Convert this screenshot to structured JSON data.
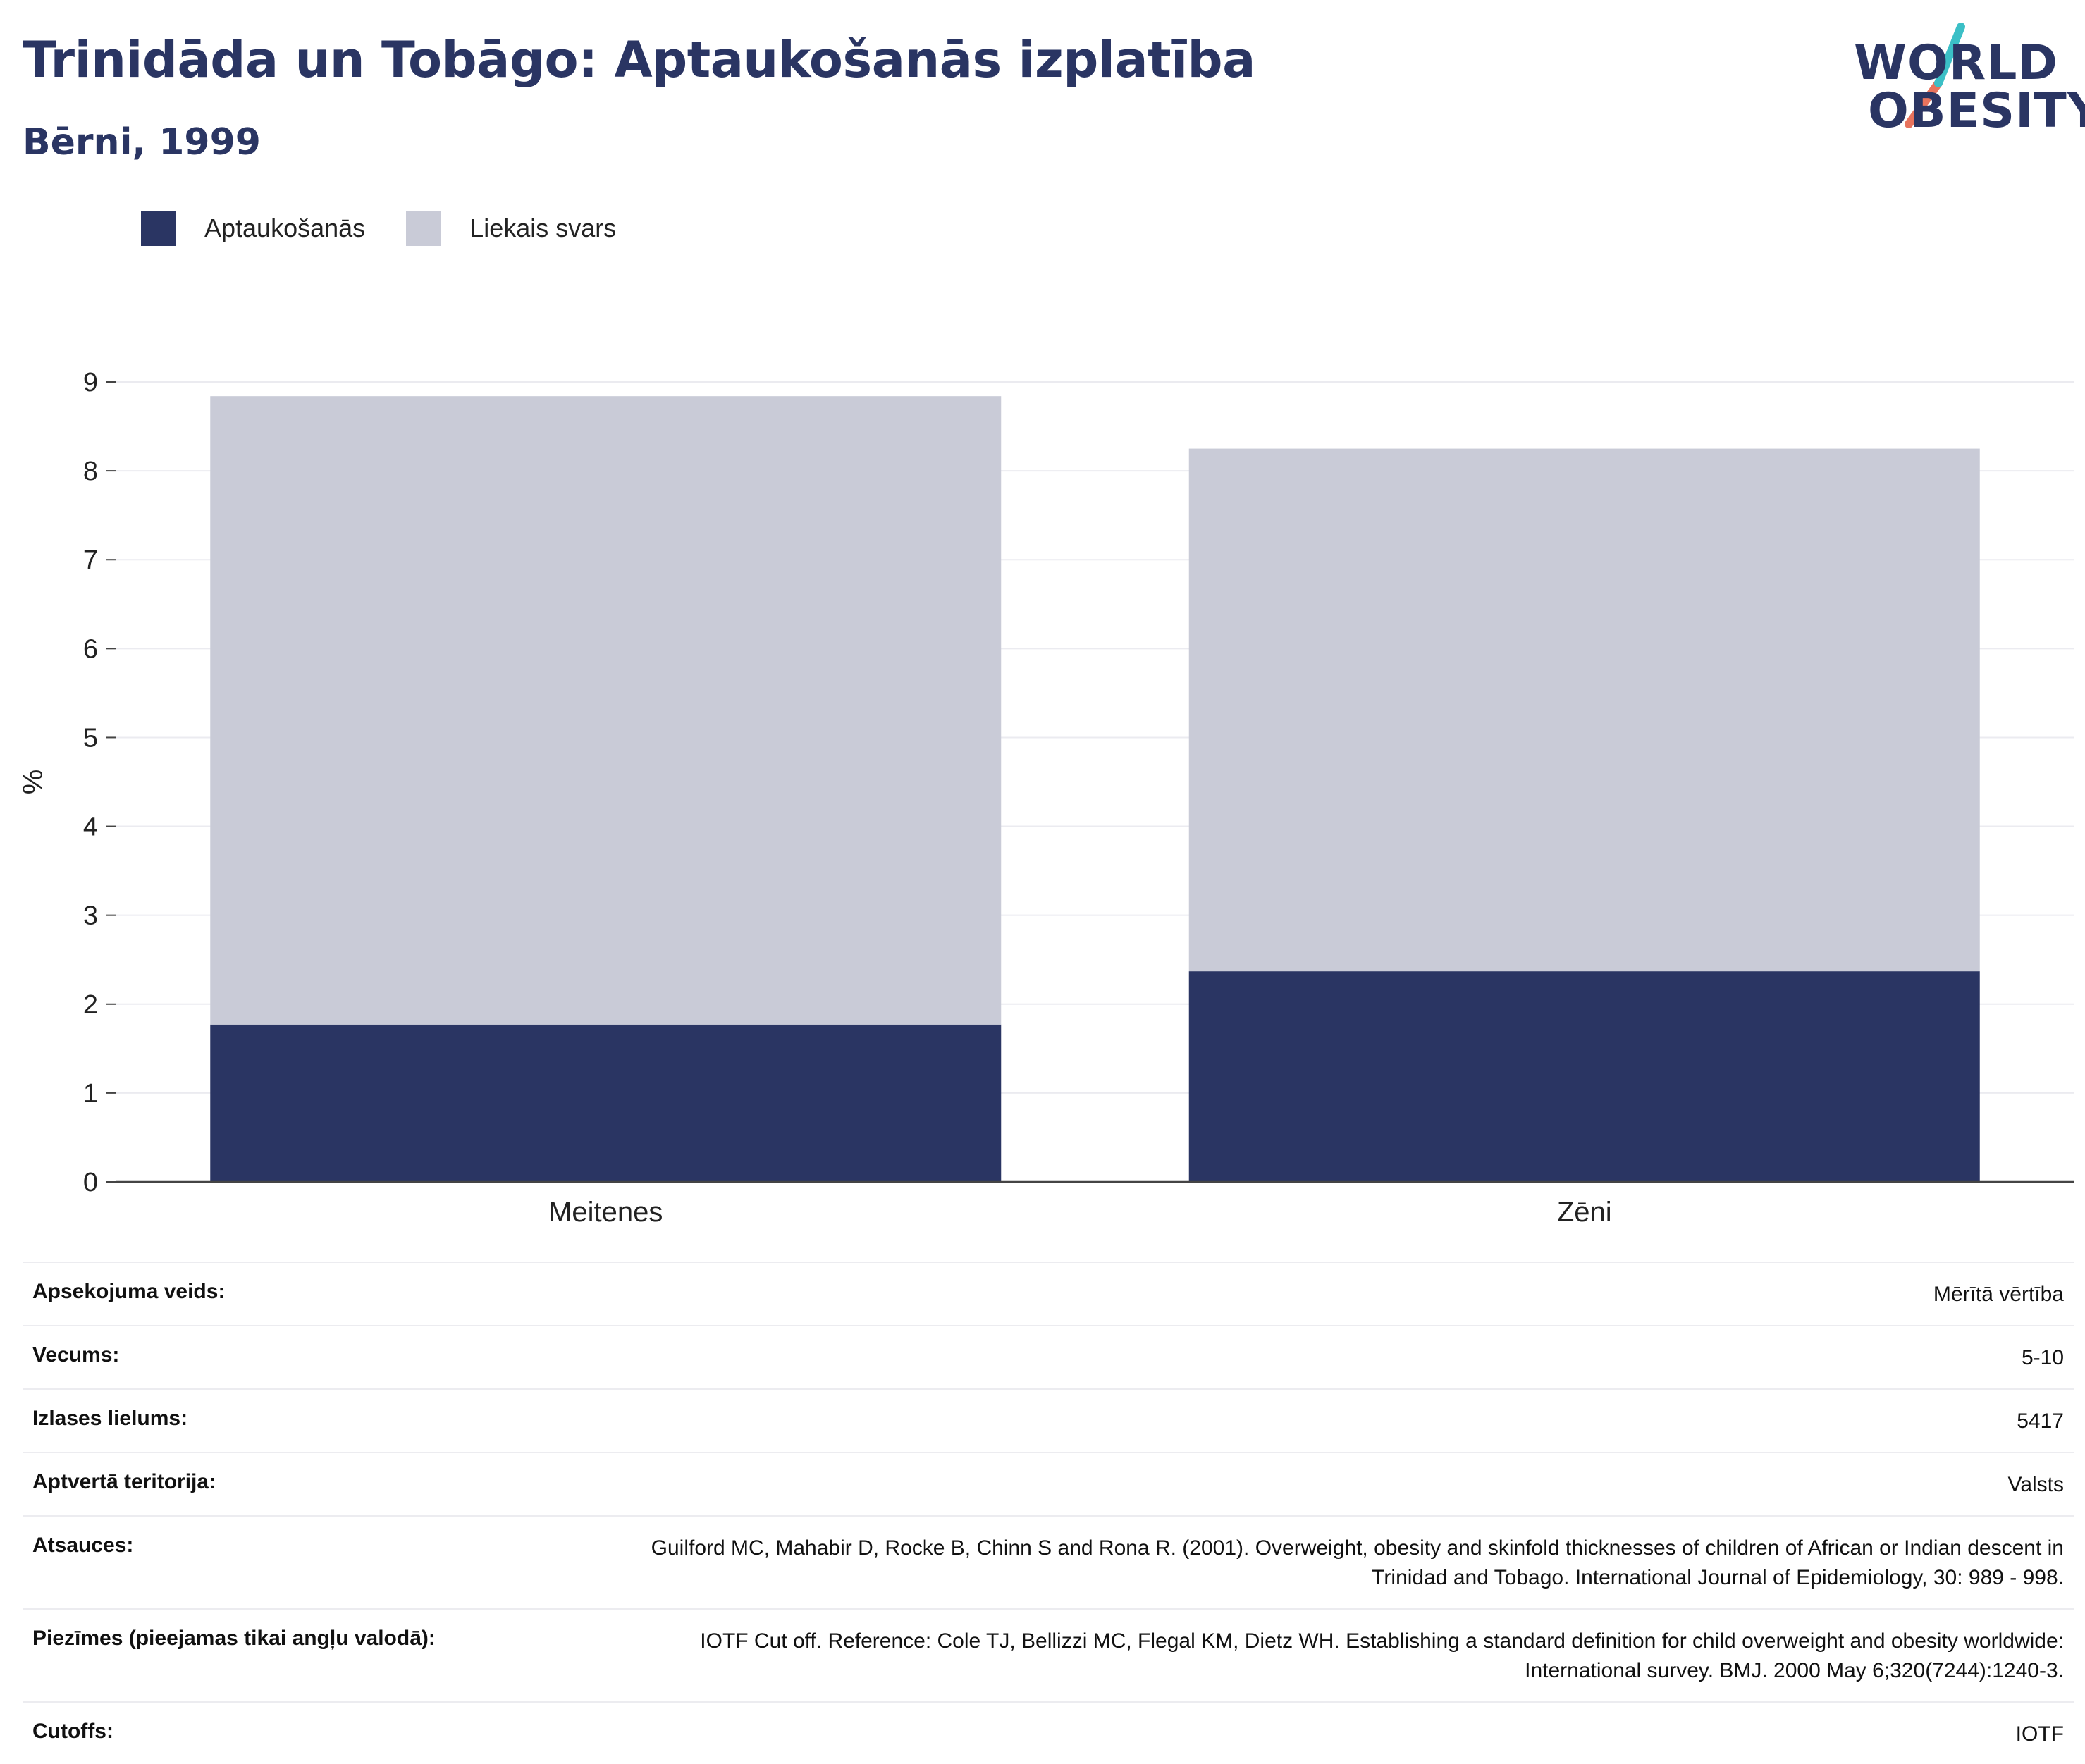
{
  "header": {
    "title": "Trinidāda un Tobāgo: Aptaukošanās izplatība",
    "subtitle": "Bērni, 1999"
  },
  "logo": {
    "line1": "WORLD",
    "line2": "OBESITY",
    "colors": {
      "text": "#2a3563",
      "slash_teal": "#3bbfc6",
      "slash_red": "#e8735d"
    }
  },
  "legend": {
    "items": [
      {
        "label": "Aptaukošanās",
        "color": "#2a3563"
      },
      {
        "label": "Liekais svars",
        "color": "#c9cbd7"
      }
    ]
  },
  "chart_data": {
    "type": "bar",
    "stacked": true,
    "categories": [
      "Meitenes",
      "Zēni"
    ],
    "series": [
      {
        "name": "Aptaukošanās",
        "color": "#2a3563",
        "values": [
          1.77,
          2.37
        ]
      },
      {
        "name": "Liekais svars",
        "color": "#c9cbd7",
        "values": [
          7.07,
          5.88
        ]
      }
    ],
    "ylabel": "%",
    "ylim": [
      0,
      9
    ],
    "yticks": [
      0,
      1,
      2,
      3,
      4,
      5,
      6,
      7,
      8,
      9
    ],
    "grid": true,
    "legend_position": "top-left"
  },
  "info": {
    "rows": [
      {
        "label": "Apsekojuma veids:",
        "value": "Mērītā vērtība"
      },
      {
        "label": "Vecums:",
        "value": "5-10"
      },
      {
        "label": "Izlases lielums:",
        "value": "5417"
      },
      {
        "label": "Aptvertā teritorija:",
        "value": "Valsts"
      },
      {
        "label": "Atsauces:",
        "value": "Guilford MC, Mahabir D, Rocke B, Chinn S and Rona R. (2001). Overweight, obesity and skinfold thicknesses of children of African or Indian descent in Trinidad and Tobago. International Journal of Epidemiology, 30: 989 - 998."
      },
      {
        "label": "Piezīmes (pieejamas tikai angļu valodā):",
        "value": "IOTF Cut off. Reference: Cole TJ, Bellizzi MC, Flegal KM, Dietz WH. Establishing a standard definition for child overweight and obesity worldwide: International survey. BMJ. 2000 May 6;320(7244):1240-3."
      },
      {
        "label": "Cutoffs:",
        "value": "IOTF"
      }
    ]
  }
}
